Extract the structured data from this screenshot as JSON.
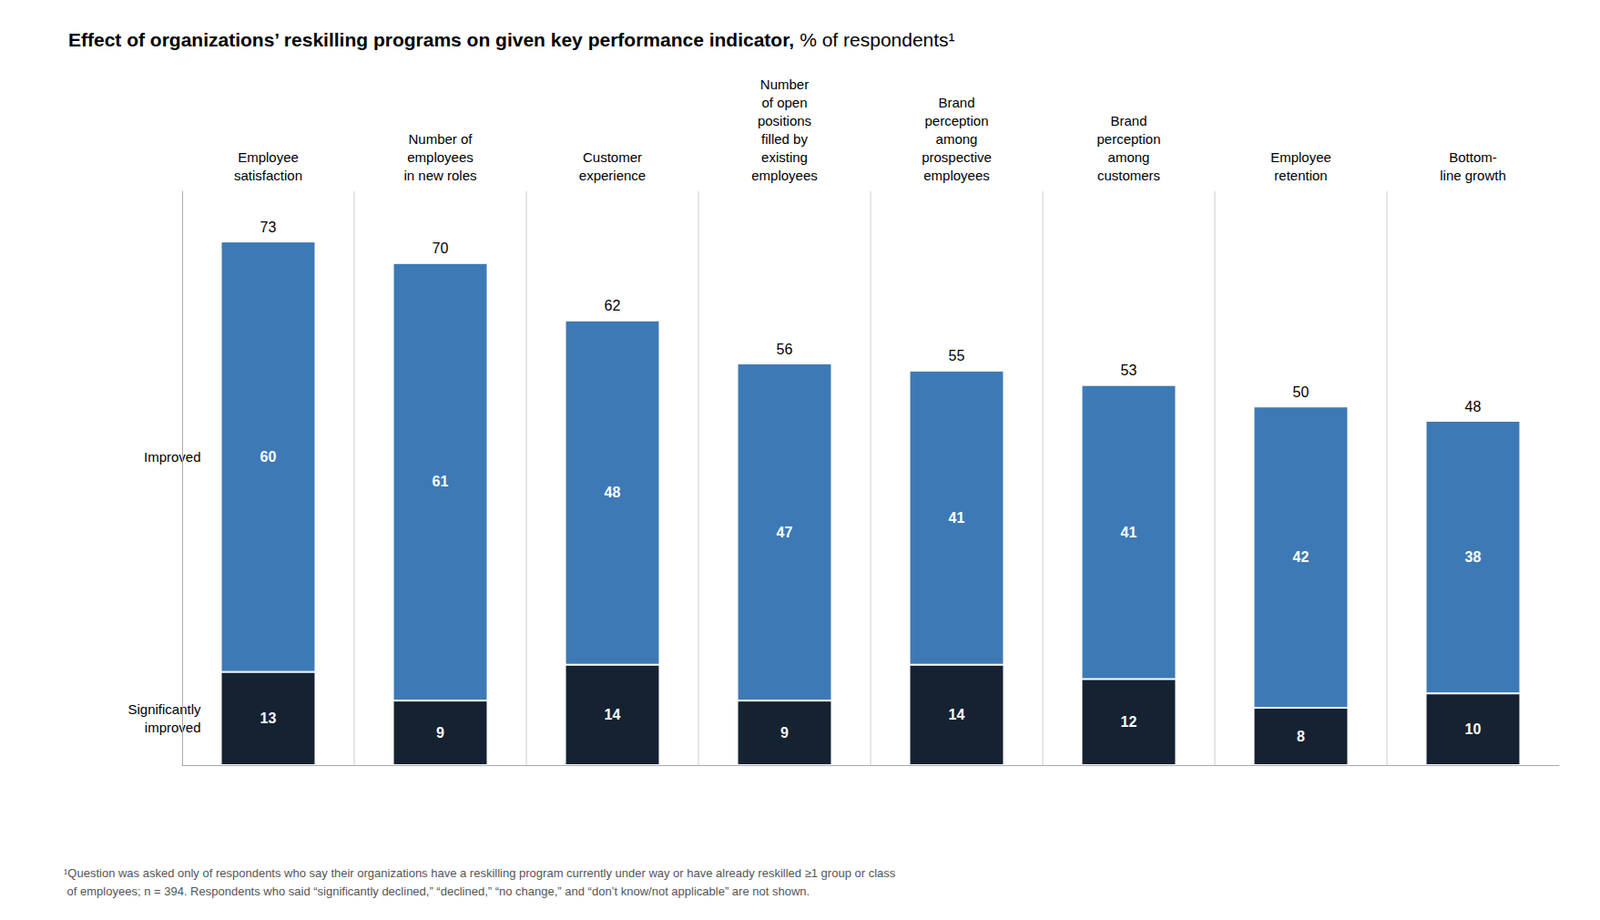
{
  "chart_data": {
    "type": "bar",
    "title": "Effect of organizations’ reskilling programs on given key performance indicator,",
    "subtitle": "% of respondents¹",
    "annotations": [
      "¹Question was asked only of respondents who say their organizations have a reskilling program currently under way or have already reskilled ≥1 group or class\n of employees; n = 394. Respondents who said “significantly declined,” “declined,” “no change,” and “don’t know/not applicable” are not shown."
    ],
    "categories": [
      "Employee\nsatisfaction",
      "Number of\nemployees\nin new roles",
      "Customer\nexperience",
      "Number\nof open\npositions\nfilled by\nexisting\nemployees",
      "Brand\nperception\namong\nprospective\nemployees",
      "Brand\nperception\namong\ncustomers",
      "Employee\nretention",
      "Bottom-\nline growth"
    ],
    "series": [
      {
        "name": "Significantly\nimproved",
        "color": "#152232",
        "values": [
          13,
          9,
          14,
          9,
          14,
          12,
          8,
          10
        ]
      },
      {
        "name": "Improved",
        "color": "#3d7ab5",
        "values": [
          60,
          61,
          48,
          47,
          41,
          41,
          42,
          38
        ]
      }
    ],
    "totals": [
      73,
      70,
      62,
      56,
      55,
      53,
      50,
      48
    ],
    "stacked": true,
    "data_labels": true,
    "ylim": [
      0,
      80
    ],
    "grid": false,
    "tick_labels": "x"
  }
}
